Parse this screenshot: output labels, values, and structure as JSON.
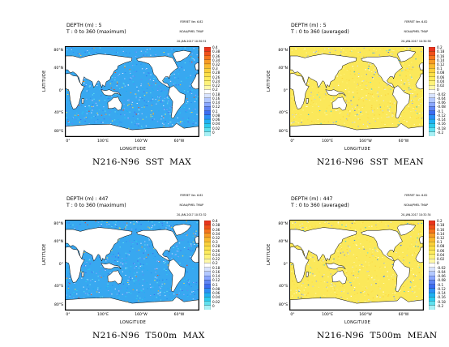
{
  "panels": [
    {
      "depth": "DEPTH (m) : 5",
      "time": "T : 0 to 360 (maximum)",
      "title": "N216-N96  SST  MAX",
      "ferret": [
        "FERRET Ver. 6.82",
        "NOAA/PMEL TMAP",
        "20-JAN-2017 10:30:51"
      ],
      "scale": "max",
      "labels": [
        "0.4",
        "0.38",
        "0.36",
        "0.34",
        "0.32",
        "0.3",
        "0.28",
        "0.26",
        "0.24",
        "0.22",
        "0.2",
        "0.18",
        "0.16",
        "0.14",
        "0.12",
        "0.1",
        "0.08",
        "0.06",
        "0.04",
        "0.02",
        "0"
      ]
    },
    {
      "depth": "DEPTH (m) : 5",
      "time": "T : 0 to 360 (averaged)",
      "title": "N216-N96  SST  MEAN",
      "ferret": [
        "FERRET Ver. 6.82",
        "NOAA/PMEL TMAP",
        "20-JAN-2017 10:30:58"
      ],
      "scale": "mean",
      "labels": [
        "0.2",
        "0.18",
        "0.16",
        "0.14",
        "0.12",
        "0.1",
        "0.08",
        "0.06",
        "0.04",
        "0.02",
        "0",
        "-0.02",
        "-0.04",
        "-0.06",
        "-0.08",
        "-0.1",
        "-0.12",
        "-0.14",
        "-0.16",
        "-0.18",
        "-0.2"
      ]
    },
    {
      "depth": "DEPTH (m) : 447",
      "time": "T : 0 to 360 (maximum)",
      "title": "N216-N96  T500m  MAX",
      "ferret": [
        "FERRET Ver. 6.82",
        "NOAA/PMEL TMAP",
        "20-JAN-2017 10:32:32"
      ],
      "scale": "max",
      "labels": [
        "0.4",
        "0.38",
        "0.36",
        "0.34",
        "0.32",
        "0.3",
        "0.28",
        "0.26",
        "0.24",
        "0.22",
        "0.2",
        "0.18",
        "0.16",
        "0.14",
        "0.12",
        "0.1",
        "0.08",
        "0.06",
        "0.04",
        "0.02",
        "0"
      ]
    },
    {
      "depth": "DEPTH (m) : 447",
      "time": "T : 0 to 360 (averaged)",
      "title": "N216-N96  T500m  MEAN",
      "ferret": [
        "FERRET Ver. 6.82",
        "NOAA/PMEL TMAP",
        "20-JAN-2017 10:32:34"
      ],
      "scale": "mean",
      "labels": [
        "0.2",
        "0.18",
        "0.16",
        "0.14",
        "0.12",
        "0.1",
        "0.08",
        "0.06",
        "0.04",
        "0.02",
        "0",
        "-0.02",
        "-0.04",
        "-0.06",
        "-0.08",
        "-0.1",
        "-0.12",
        "-0.14",
        "-0.16",
        "-0.18",
        "-0.2"
      ]
    }
  ],
  "axes": {
    "xlabel": "LONGITUDE",
    "ylabel": "LATITUDE",
    "xticks": [
      "0°",
      "100°E",
      "160°W",
      "60°W"
    ],
    "yticks": [
      "80°N",
      "40°N",
      "0°",
      "40°S",
      "80°S"
    ]
  },
  "colors": {
    "max_palette": [
      "#e8341c",
      "#f0501a",
      "#f5741c",
      "#f79b24",
      "#f9b92e",
      "#fbd03a",
      "#fce048",
      "#fdeb5c",
      "#fdf27a",
      "#fef8a8",
      "#ffffff",
      "#d9e4ff",
      "#b3c8ff",
      "#8aa7ff",
      "#5f85f5",
      "#3c6df0",
      "#2b8ef4",
      "#1fb0f2",
      "#2ccbee",
      "#5fe0ee",
      "#a8f0f5"
    ],
    "mean_palette": [
      "#e8341c",
      "#f0501a",
      "#f5741c",
      "#f79b24",
      "#f9b92e",
      "#fbd03a",
      "#fce048",
      "#fdeb5c",
      "#fdf27a",
      "#fef8a8",
      "#ffffff",
      "#d9e4ff",
      "#b3c8ff",
      "#8aa7ff",
      "#5f85f5",
      "#3c6df0",
      "#2b8ef4",
      "#1fb0f2",
      "#2ccbee",
      "#5fe0ee",
      "#a8f0f5"
    ],
    "land": "#ffffff",
    "max_ocean": "#38a8f0",
    "mean_ocean": "#fbe85a"
  }
}
